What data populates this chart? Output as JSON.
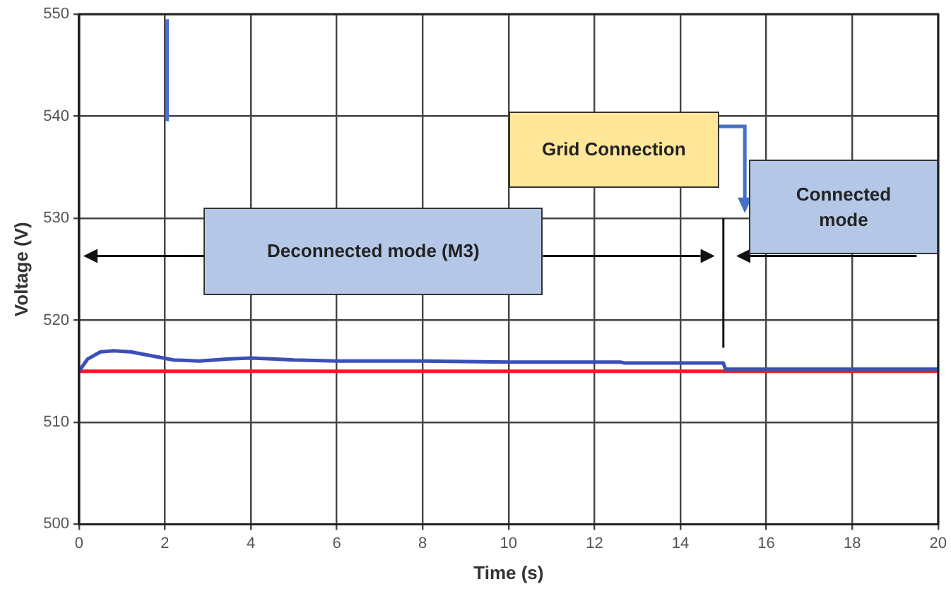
{
  "chart_data": {
    "type": "line",
    "xlabel": "Time (s)",
    "ylabel": "Voltage (V)",
    "xlim": [
      0,
      20
    ],
    "xticks": [
      0,
      2,
      4,
      6,
      8,
      10,
      12,
      14,
      16,
      18,
      20
    ],
    "ylim": [
      500,
      550
    ],
    "yticks": [
      500,
      510,
      520,
      530,
      540,
      550
    ],
    "grid": true,
    "legend": false,
    "marker": "none",
    "line_style": "solid",
    "series": [
      {
        "color": "#3b4fb8",
        "x": [
          0,
          0.2,
          0.5,
          0.8,
          1.2,
          1.7,
          2.2,
          2.8,
          3.5,
          4,
          4.5,
          5,
          6,
          8,
          10,
          12,
          12.6,
          12.7,
          14,
          15,
          15.05,
          15.2,
          17,
          20
        ],
        "values": [
          515,
          516.2,
          516.9,
          517,
          516.9,
          516.5,
          516.1,
          516,
          516.2,
          516.3,
          516.2,
          516.1,
          516,
          516,
          515.9,
          515.9,
          515.9,
          515.8,
          515.8,
          515.8,
          515.2,
          515.2,
          515.2,
          515.2
        ]
      },
      {
        "color": "#ee1c24",
        "x": [
          0,
          20
        ],
        "values": [
          515,
          515
        ]
      },
      {
        "color": "#4a72d0",
        "x": [
          2.05,
          2.05
        ],
        "values": [
          539.5,
          549.5
        ]
      }
    ],
    "annotations": [
      "Grid Connection",
      "Deconnected mode (M3)",
      "Connected mode"
    ]
  }
}
